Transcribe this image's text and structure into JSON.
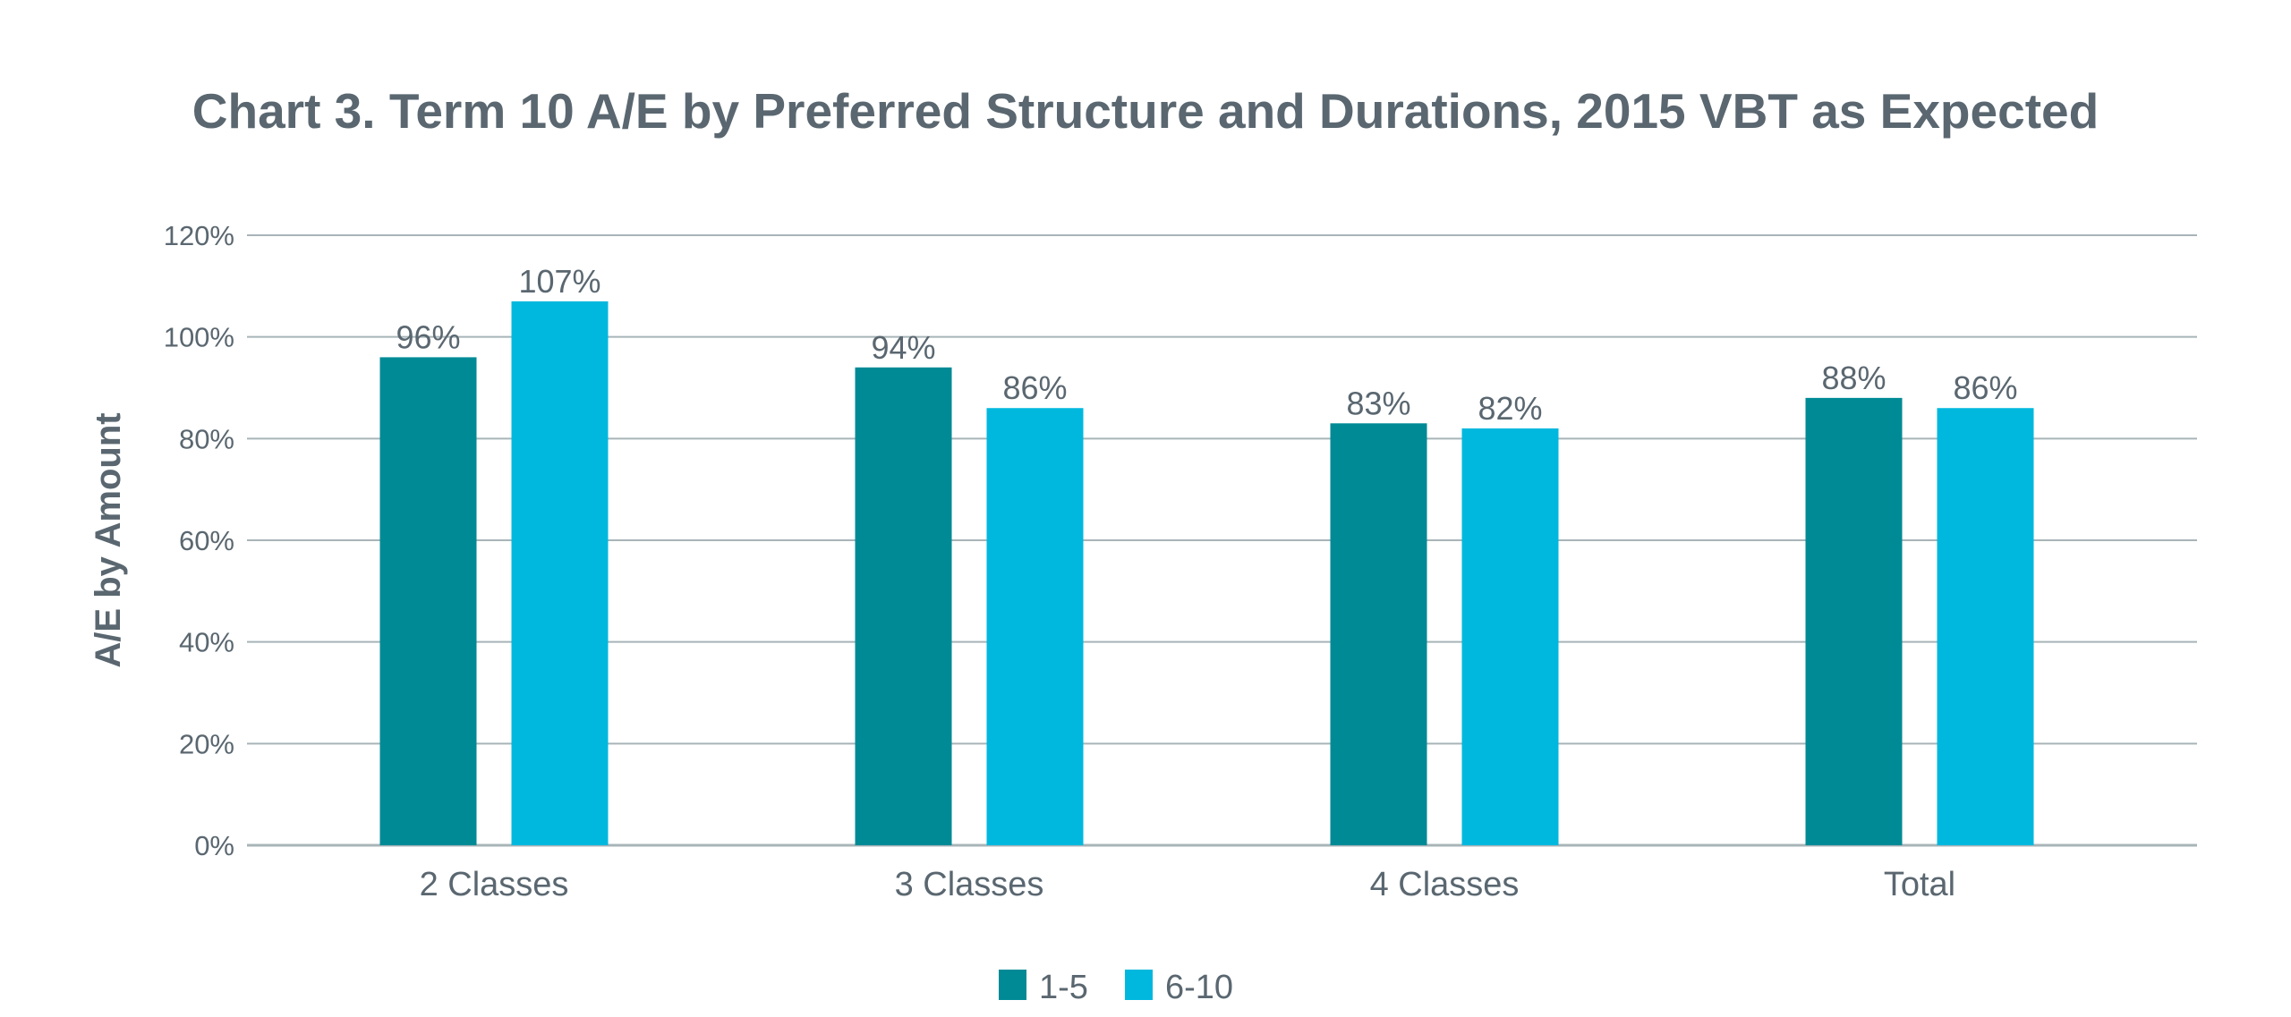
{
  "chart_data": {
    "type": "bar",
    "title": "Chart 3. Term 10 A/E by Preferred Structure and Durations, 2015 VBT as Expected",
    "xlabel": "",
    "ylabel": "A/E by Amount",
    "categories": [
      "2 Classes",
      "3 Classes",
      "4 Classes",
      "Total"
    ],
    "series": [
      {
        "name": "1-5",
        "color": "#008a96",
        "values": [
          96,
          94,
          83,
          88
        ],
        "labels": [
          "96%",
          "94%",
          "83%",
          "88%"
        ]
      },
      {
        "name": "6-10",
        "color": "#00b8de",
        "values": [
          107,
          86,
          82,
          86
        ],
        "labels": [
          "107%",
          "86%",
          "82%",
          "86%"
        ]
      }
    ],
    "ylim": [
      0,
      120
    ],
    "yticks": [
      0,
      20,
      40,
      60,
      80,
      100,
      120
    ],
    "ytick_labels": [
      "0%",
      "20%",
      "40%",
      "60%",
      "80%",
      "100%",
      "120%"
    ],
    "grid": true,
    "legend_position": "bottom-center"
  }
}
